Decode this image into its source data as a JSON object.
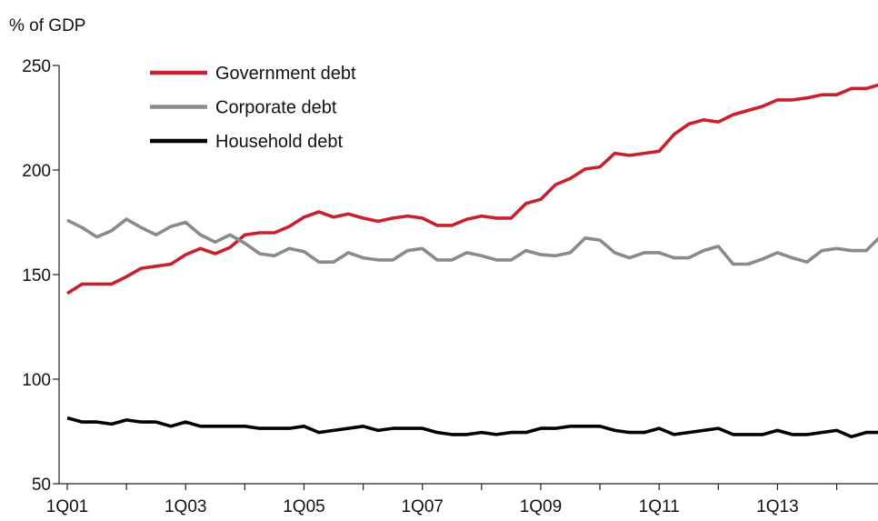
{
  "chart_data": {
    "type": "line",
    "title": "",
    "ylabel": "% of GDP",
    "xlabel": "",
    "ylim": [
      50,
      250
    ],
    "y_ticks": [
      50,
      100,
      150,
      200,
      250
    ],
    "x_tick_labels": [
      "1Q01",
      "1Q03",
      "1Q05",
      "1Q07",
      "1Q09",
      "1Q11",
      "1Q13"
    ],
    "legend_position": "top-left",
    "grid": false,
    "x": [
      "1Q01",
      "2Q01",
      "3Q01",
      "4Q01",
      "1Q02",
      "2Q02",
      "3Q02",
      "4Q02",
      "1Q03",
      "2Q03",
      "3Q03",
      "4Q03",
      "1Q04",
      "2Q04",
      "3Q04",
      "4Q04",
      "1Q05",
      "2Q05",
      "3Q05",
      "4Q05",
      "1Q06",
      "2Q06",
      "3Q06",
      "4Q06",
      "1Q07",
      "2Q07",
      "3Q07",
      "4Q07",
      "1Q08",
      "2Q08",
      "3Q08",
      "4Q08",
      "1Q09",
      "2Q09",
      "3Q09",
      "4Q09",
      "1Q10",
      "2Q10",
      "3Q10",
      "4Q10",
      "1Q11",
      "2Q11",
      "3Q11",
      "4Q11",
      "1Q12",
      "2Q12",
      "3Q12",
      "4Q12",
      "1Q13",
      "2Q13",
      "3Q13",
      "4Q13",
      "1Q14",
      "2Q14",
      "3Q14",
      "4Q14"
    ],
    "series": [
      {
        "name": "Government debt",
        "color": "#c8202c",
        "values": [
          141,
          145.5,
          145.5,
          145.5,
          149,
          153,
          154,
          155,
          159.5,
          162.5,
          160,
          163,
          169,
          170,
          170,
          173,
          177.5,
          180,
          177.5,
          179,
          177,
          175.5,
          177,
          178,
          177,
          173.5,
          173.5,
          176.5,
          178,
          177,
          177,
          184,
          186,
          193,
          196,
          200.5,
          201.5,
          208,
          207,
          208,
          209,
          217,
          222,
          224,
          223,
          226.5,
          228.5,
          230.5,
          233.5,
          233.5,
          234.5,
          236,
          236,
          239,
          239,
          241
        ]
      },
      {
        "name": "Corporate debt",
        "color": "#8a8a8a",
        "values": [
          176,
          172.5,
          168,
          171,
          176.5,
          172.5,
          169,
          173,
          175,
          169,
          165.5,
          169,
          165,
          160,
          159,
          162.5,
          161,
          156,
          156,
          160.5,
          158,
          157,
          157,
          161.5,
          162.5,
          157,
          157,
          160.5,
          159,
          157,
          157,
          161.5,
          159.5,
          159,
          160.5,
          167.5,
          166.5,
          160.5,
          158,
          160.5,
          160.5,
          158,
          158,
          161.5,
          163.5,
          155,
          155,
          157.5,
          160.5,
          158,
          156,
          161.5,
          162.5,
          161.5,
          161.5,
          168.5
        ]
      },
      {
        "name": "Household debt",
        "color": "#000000",
        "values": [
          81.5,
          79.5,
          79.5,
          78.5,
          80.5,
          79.5,
          79.5,
          77.5,
          79.5,
          77.5,
          77.5,
          77.5,
          77.5,
          76.5,
          76.5,
          76.5,
          77.5,
          74.5,
          75.5,
          76.5,
          77.5,
          75.5,
          76.5,
          76.5,
          76.5,
          74.5,
          73.5,
          73.5,
          74.5,
          73.5,
          74.5,
          74.5,
          76.5,
          76.5,
          77.5,
          77.5,
          77.5,
          75.5,
          74.5,
          74.5,
          76.5,
          73.5,
          74.5,
          75.5,
          76.5,
          73.5,
          73.5,
          73.5,
          75.5,
          73.5,
          73.5,
          74.5,
          75.5,
          72.5,
          74.5,
          74.5
        ]
      }
    ]
  }
}
